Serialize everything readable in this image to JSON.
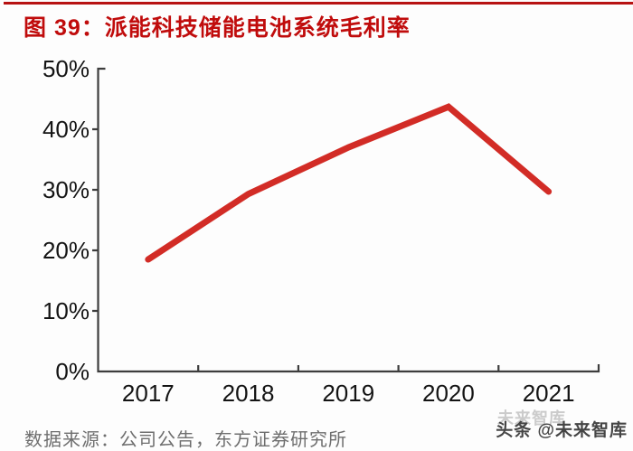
{
  "header": {
    "title": "图 39：派能科技储能电池系统毛利率"
  },
  "footer": {
    "source": "数据来源：公司公告，东方证券研究所",
    "watermark": "头条 @未来智库",
    "watermark_ghost": "未来智库"
  },
  "colors": {
    "title_red": "#c00c0c",
    "top_rule_red": "#b71212",
    "line_red": "#d22c26",
    "axis_gray": "#3d3d3d",
    "tick_label": "#141414",
    "source_gray": "#6e6e6e",
    "background": "#fdfdfd"
  },
  "chart_data": {
    "type": "line",
    "title": "图 39：派能科技储能电池系统毛利率",
    "categories": [
      "2017",
      "2018",
      "2019",
      "2020",
      "2021"
    ],
    "series": [
      {
        "name": "储能电池系统毛利率",
        "values": [
          18.5,
          29.3,
          37.0,
          43.7,
          29.7
        ]
      }
    ],
    "ytick_labels": [
      "0%",
      "10%",
      "20%",
      "30%",
      "40%",
      "50%"
    ],
    "ytick_values": [
      0,
      10,
      20,
      30,
      40,
      50
    ],
    "ylim": [
      0,
      50
    ],
    "xlabel": "",
    "ylabel": "",
    "grid": false,
    "legend": "none",
    "line_color": "#d22c26"
  }
}
